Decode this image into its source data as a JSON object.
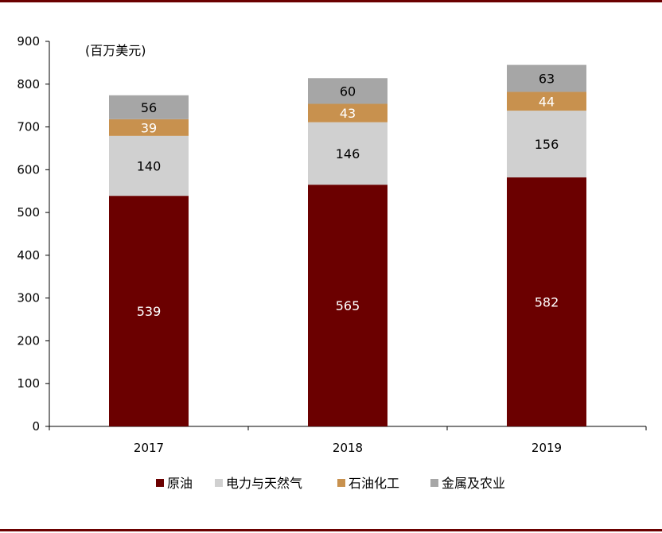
{
  "chart_data": {
    "type": "bar",
    "stacked": true,
    "unit_label": "(百万美元)",
    "categories": [
      "2017",
      "2018",
      "2019"
    ],
    "ylim": [
      0,
      900
    ],
    "yticks": [
      0,
      100,
      200,
      300,
      400,
      500,
      600,
      700,
      800,
      900
    ],
    "grid": false,
    "legend_position": "bottom",
    "series": [
      {
        "name": "原油",
        "values": [
          539,
          565,
          582
        ],
        "color": "#6b0000",
        "label_color": "#ffffff"
      },
      {
        "name": "电力与天然气",
        "values": [
          140,
          146,
          156
        ],
        "color": "#d0d0d0",
        "label_color": "#000000"
      },
      {
        "name": "石油化工",
        "values": [
          39,
          43,
          44
        ],
        "color": "#c8914e",
        "label_color": "#ffffff"
      },
      {
        "name": "金属及农业",
        "values": [
          56,
          60,
          63
        ],
        "color": "#a6a6a6",
        "label_color": "#000000"
      }
    ]
  }
}
